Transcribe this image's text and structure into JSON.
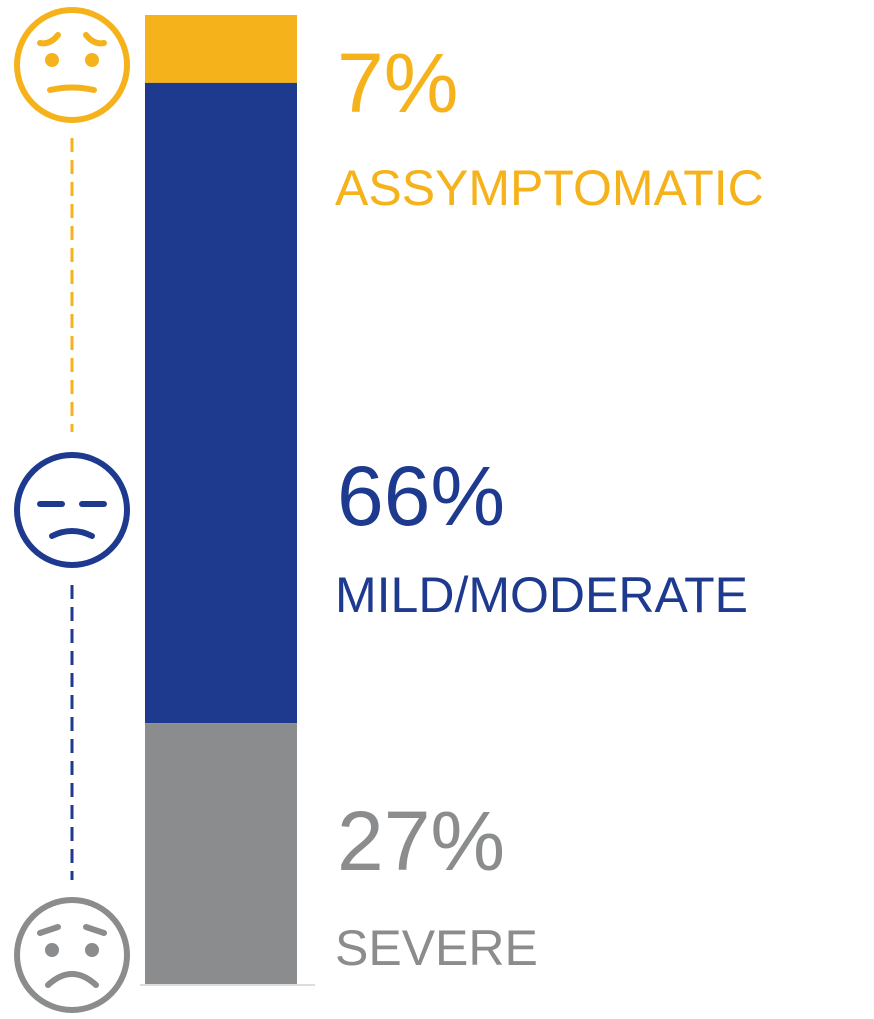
{
  "chart_data": {
    "type": "stacked_bar",
    "series": [
      {
        "name": "ASSYMPTOMATIC",
        "color": "#f5b21b",
        "values": [
          7
        ],
        "value_labels": [
          "7%"
        ]
      },
      {
        "name": "MILD/MODERATE",
        "color": "#1e3a8f",
        "values": [
          66
        ],
        "value_labels": [
          "66%"
        ]
      },
      {
        "name": "SEVERE",
        "color": "#8a8c8e",
        "values": [
          27
        ],
        "value_labels": [
          "27%"
        ]
      }
    ]
  }
}
